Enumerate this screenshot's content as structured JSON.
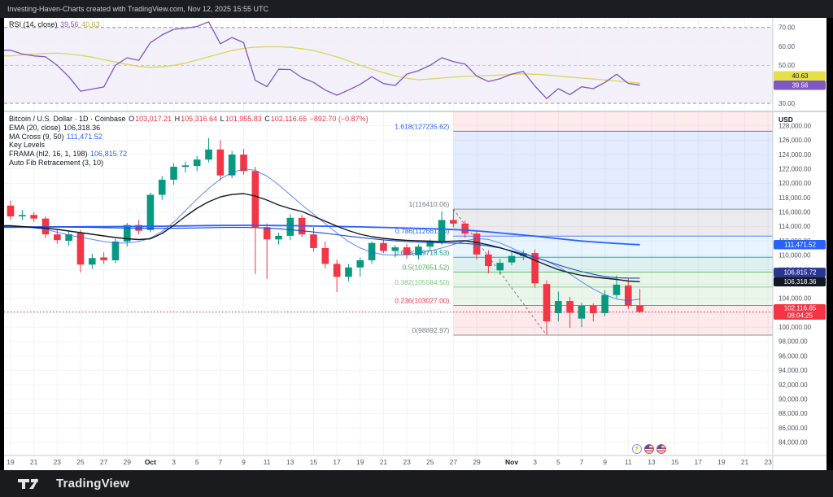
{
  "frame": {
    "top_bar_text": "Investing-Haven-Charts created with TradingView.com, Nov 12, 2025 15:55 UTC",
    "brand": "TradingView"
  },
  "colors": {
    "up": "#089981",
    "down": "#f23645",
    "ema": "#131722",
    "ma_fast": "#2962ff",
    "ma_slow": "#2962ff",
    "frama": "#1848cc",
    "rsi": "#7e57c2",
    "rsi_ma": "#ddd45a",
    "grid": "#f0f3fa",
    "axis_text": "#50535e"
  },
  "rsi_pane": {
    "legend_parts": [
      {
        "t": "RSI (14, close)  ",
        "c": "#131722"
      },
      {
        "t": "39.56 ",
        "c": "#7e57c2"
      },
      {
        "t": "40.63",
        "c": "#b5ac36"
      }
    ],
    "levels": {
      "upper": 70,
      "middle": 50,
      "lower": 30
    },
    "ticks": [
      70,
      60,
      50,
      30
    ],
    "badges": [
      {
        "name": "rsi-ma-value",
        "lines": [
          "40.63"
        ],
        "bg": "#e5e048",
        "fg": "#131722",
        "value": 39.56,
        "stack": -1
      },
      {
        "name": "rsi-value",
        "lines": [
          "39.56"
        ],
        "bg": "#7e57c2",
        "fg": "#ffffff",
        "value": 39.56,
        "stack": 0
      }
    ]
  },
  "price_pane": {
    "legend_rows": [
      [
        {
          "t": "Bitcoin / U.S. Dollar · 1D · Coinbase  ",
          "c": "#131722"
        },
        {
          "t": "O",
          "c": "#131722"
        },
        {
          "t": "103,017.21 ",
          "c": "#f23645"
        },
        {
          "t": "H",
          "c": "#131722"
        },
        {
          "t": "105,316.64 ",
          "c": "#f23645"
        },
        {
          "t": "L",
          "c": "#131722"
        },
        {
          "t": "101,955.83 ",
          "c": "#f23645"
        },
        {
          "t": "C",
          "c": "#131722"
        },
        {
          "t": "102,116.65 ",
          "c": "#f23645"
        },
        {
          "t": "−892.70 (−0.87%)",
          "c": "#f23645"
        }
      ],
      [
        {
          "t": "EMA (20, close)  ",
          "c": "#131722"
        },
        {
          "t": "106,318.36",
          "c": "#131722"
        }
      ],
      [
        {
          "t": "MA Cross (9, 50)  ",
          "c": "#131722"
        },
        {
          "t": "111,471.52",
          "c": "#2962ff"
        }
      ],
      [
        {
          "t": "Key Levels",
          "c": "#131722"
        }
      ],
      [
        {
          "t": "FRAMA (hl2, 16, 1, 198)  ",
          "c": "#131722"
        },
        {
          "t": "106,815.72",
          "c": "#2962ff"
        }
      ],
      [
        {
          "t": "Auto Fib Retracement (3, 10)",
          "c": "#131722"
        }
      ]
    ],
    "axis": {
      "currency": "USD",
      "min": 84000,
      "max": 128000,
      "step": 2000
    },
    "fib_levels": [
      {
        "level": "1.618",
        "price": 127235.62,
        "label": "1.618(127235.62)",
        "color": "#2962ff"
      },
      {
        "level": "1",
        "price": 116410.06,
        "label": "1(116410.06)",
        "color": "#787b86"
      },
      {
        "level": "0.786",
        "price": 112661.4,
        "label": "0.786(112661.40)",
        "color": "#2962ff"
      },
      {
        "level": "0.618",
        "price": 109718.53,
        "label": "0.618(109718.53)",
        "color": "#009688"
      },
      {
        "level": "0.5",
        "price": 107651.52,
        "label": "0.5(107651.52)",
        "color": "#4caf50"
      },
      {
        "level": "0.382",
        "price": 105584.5,
        "label": "0.382(105584.50)",
        "color": "#81c784"
      },
      {
        "level": "0.236",
        "price": 103027.0,
        "label": "0.236(103027.00)",
        "color": "#f23645"
      },
      {
        "level": "0",
        "price": 98892.97,
        "label": "0(98892.97)",
        "color": "#787b86"
      }
    ],
    "bands": [
      {
        "from": null,
        "to": 127235.62,
        "color": "rgba(242,54,69,0.10)"
      },
      {
        "from": 127235.62,
        "to": 116410.06,
        "color": "rgba(41,98,255,0.13)"
      },
      {
        "from": 116410.06,
        "to": 112661.4,
        "color": "rgba(120,123,134,0.15)"
      },
      {
        "from": 112661.4,
        "to": 109718.53,
        "color": "rgba(100,181,246,0.15)"
      },
      {
        "from": 109718.53,
        "to": 107651.52,
        "color": "rgba(0,150,136,0.13)"
      },
      {
        "from": 107651.52,
        "to": 105584.5,
        "color": "rgba(76,175,80,0.13)"
      },
      {
        "from": 105584.5,
        "to": 103027.0,
        "color": "rgba(129,199,132,0.16)"
      },
      {
        "from": 103027.0,
        "to": 98892.97,
        "color": "rgba(242,54,69,0.11)"
      }
    ],
    "badges": [
      {
        "name": "ma-cross-value",
        "bg": "#2962ff",
        "fg": "#ffffff",
        "lines": [
          "111,471.52"
        ],
        "price": 111471.52,
        "stack": 0
      },
      {
        "name": "frama-value",
        "bg": "#283593",
        "fg": "#ffffff",
        "lines": [
          "106,815.72"
        ],
        "price": 106318.36,
        "stack": -1
      },
      {
        "name": "ema-value",
        "bg": "#131722",
        "fg": "#ffffff",
        "lines": [
          "106,318.36"
        ],
        "price": 106318.36,
        "stack": 0
      },
      {
        "name": "last-price",
        "bg": "#f23645",
        "fg": "#ffffff",
        "lines": [
          "102,116.65",
          "08:04:25"
        ],
        "price": 102116.65,
        "stack": 0
      }
    ]
  },
  "x_axis": {
    "ticks": [
      [
        "19",
        0,
        0
      ],
      [
        "21",
        2,
        0
      ],
      [
        "23",
        4,
        0
      ],
      [
        "25",
        6,
        0
      ],
      [
        "27",
        8,
        0
      ],
      [
        "29",
        10,
        0
      ],
      [
        "Oct",
        12,
        1
      ],
      [
        "3",
        14,
        0
      ],
      [
        "5",
        16,
        0
      ],
      [
        "7",
        18,
        0
      ],
      [
        "9",
        20,
        0
      ],
      [
        "11",
        22,
        0
      ],
      [
        "13",
        24,
        0
      ],
      [
        "15",
        26,
        0
      ],
      [
        "17",
        28,
        0
      ],
      [
        "19",
        30,
        0
      ],
      [
        "21",
        32,
        0
      ],
      [
        "23",
        34,
        0
      ],
      [
        "25",
        36,
        0
      ],
      [
        "27",
        38,
        0
      ],
      [
        "29",
        40,
        0
      ],
      [
        "Nov",
        43,
        1
      ],
      [
        "3",
        45,
        0
      ],
      [
        "5",
        47,
        0
      ],
      [
        "7",
        49,
        0
      ],
      [
        "9",
        51,
        0
      ],
      [
        "11",
        53,
        0
      ],
      [
        "13",
        55,
        0
      ],
      [
        "15",
        57,
        0
      ],
      [
        "17",
        59,
        0
      ],
      [
        "19",
        61,
        0
      ],
      [
        "21",
        63,
        0
      ],
      [
        "23",
        65,
        0
      ]
    ]
  },
  "reactions": {
    "items": [
      {
        "name": "lightning",
        "glyph": "⚡"
      },
      {
        "name": "us-flag",
        "glyph": ""
      },
      {
        "name": "us-flag",
        "glyph": ""
      }
    ]
  },
  "chart_data": {
    "type": "candlestick",
    "title": "Bitcoin / U.S. Dollar",
    "interval": "1D",
    "exchange": "Coinbase",
    "last_open": 103017.21,
    "last_high": 105316.64,
    "last_low": 101955.83,
    "last_close": 102116.65,
    "change": -892.7,
    "change_pct": -0.87,
    "ylim": [
      84000,
      128000
    ],
    "fib_anchor_high_day": 38,
    "fib_anchor_low_day": 46,
    "candles": [
      [
        "Sep 19",
        116900,
        117600,
        114900,
        115400
      ],
      [
        "Sep 20",
        115400,
        116300,
        114900,
        115600
      ],
      [
        "Sep 21",
        115600,
        116000,
        114600,
        115100
      ],
      [
        "Sep 22",
        115100,
        115400,
        112400,
        112900
      ],
      [
        "Sep 23",
        112900,
        113500,
        111600,
        112100
      ],
      [
        "Sep 24",
        112000,
        113400,
        111300,
        112900
      ],
      [
        "Sep 25",
        113100,
        113500,
        107600,
        108700
      ],
      [
        "Sep 26",
        108700,
        110200,
        108100,
        109600
      ],
      [
        "Sep 27",
        109700,
        110400,
        108800,
        109300
      ],
      [
        "Sep 28",
        109300,
        112300,
        108900,
        111900
      ],
      [
        "Sep 29",
        111900,
        114500,
        111200,
        114200
      ],
      [
        "Sep 30",
        114200,
        114900,
        112900,
        113400
      ],
      [
        "Oct 1",
        113500,
        118700,
        113200,
        118400
      ],
      [
        "Oct 2",
        118400,
        121000,
        117700,
        120500
      ],
      [
        "Oct 3",
        120500,
        122800,
        119800,
        122300
      ],
      [
        "Oct 4",
        122300,
        123000,
        121500,
        122500
      ],
      [
        "Oct 5",
        122400,
        123800,
        121700,
        123300
      ],
      [
        "Oct 6",
        123300,
        126300,
        122900,
        124700
      ],
      [
        "Oct 7",
        124700,
        126000,
        120400,
        121100
      ],
      [
        "Oct 8",
        121100,
        124500,
        120700,
        124000
      ],
      [
        "Oct 9",
        124000,
        124800,
        121200,
        121700
      ],
      [
        "Oct 10",
        121700,
        122300,
        107400,
        113900
      ],
      [
        "Oct 11",
        113900,
        114400,
        106700,
        112200
      ],
      [
        "Oct 12",
        112200,
        113100,
        111500,
        112700
      ],
      [
        "Oct 13",
        112700,
        115700,
        112100,
        115200
      ],
      [
        "Oct 14",
        115200,
        115600,
        112500,
        112900
      ],
      [
        "Oct 15",
        112900,
        113900,
        110500,
        111000
      ],
      [
        "Oct 16",
        111000,
        111900,
        108200,
        108800
      ],
      [
        "Oct 17",
        108800,
        109400,
        104900,
        107000
      ],
      [
        "Oct 18",
        107000,
        108800,
        106400,
        108300
      ],
      [
        "Oct 19",
        108300,
        109700,
        107000,
        109300
      ],
      [
        "Oct 20",
        109300,
        111900,
        108800,
        111700
      ],
      [
        "Oct 21",
        111700,
        112200,
        110300,
        110600
      ],
      [
        "Oct 22",
        110600,
        111400,
        109700,
        111100
      ],
      [
        "Oct 23",
        111100,
        111600,
        109500,
        110000
      ],
      [
        "Oct 24",
        110000,
        111500,
        109400,
        111200
      ],
      [
        "Oct 25",
        111200,
        112200,
        110700,
        111900
      ],
      [
        "Oct 26",
        111900,
        116100,
        111400,
        114900
      ],
      [
        "Oct 27",
        114900,
        116410,
        113900,
        114400
      ],
      [
        "Oct 28",
        114400,
        114800,
        112400,
        113000
      ],
      [
        "Oct 29",
        113000,
        113400,
        109400,
        110100
      ],
      [
        "Oct 30",
        110100,
        110700,
        107500,
        108500
      ],
      [
        "Oct 31",
        107900,
        109500,
        107300,
        108950
      ],
      [
        "Nov 1",
        109000,
        110500,
        108600,
        109900
      ],
      [
        "Nov 2",
        109900,
        110700,
        109300,
        110300
      ],
      [
        "Nov 3",
        110300,
        110800,
        105500,
        106100
      ],
      [
        "Nov 4",
        106000,
        106500,
        98893,
        100800
      ],
      [
        "Nov 5",
        101950,
        104950,
        100800,
        103640
      ],
      [
        "Nov 6",
        103640,
        104200,
        99900,
        102000
      ],
      [
        "Nov 7",
        101190,
        103400,
        100000,
        102960
      ],
      [
        "Nov 8",
        103000,
        103300,
        100800,
        101950
      ],
      [
        "Nov 9",
        101950,
        105150,
        101500,
        104470
      ],
      [
        "Nov 10",
        104470,
        107200,
        104000,
        105900
      ],
      [
        "Nov 11",
        105790,
        106800,
        102500,
        102960
      ],
      [
        "Nov 12",
        103017.21,
        105316.64,
        101955.83,
        102116.65
      ]
    ],
    "overlays": {
      "ema20": [
        114100,
        113990,
        113875,
        113760,
        113590,
        113365,
        113140,
        112915,
        112690,
        112460,
        112290,
        112175,
        112290,
        113025,
        114155,
        115400,
        116530,
        117435,
        118110,
        118450,
        118565,
        118225,
        117660,
        116985,
        116475,
        116080,
        115400,
        114720,
        114045,
        113420,
        112915,
        112575,
        112350,
        112175,
        112065,
        112010,
        111950,
        111895,
        111950,
        112010,
        111785,
        111445,
        111050,
        110540,
        109975,
        109300,
        108620,
        108000,
        107545,
        107205,
        106980,
        106810,
        106640,
        106415,
        106318
      ],
      "ma50": [
        113900,
        113910,
        113920,
        113930,
        113940,
        113950,
        113960,
        113970,
        113980,
        113990,
        114000,
        114010,
        114020,
        114040,
        114060,
        114080,
        114100,
        114120,
        114140,
        114150,
        114160,
        114160,
        114150,
        114130,
        114110,
        114090,
        114060,
        114030,
        114000,
        113970,
        113940,
        113900,
        113860,
        113820,
        113780,
        113730,
        113680,
        113630,
        113570,
        113500,
        113380,
        113250,
        113100,
        112950,
        112800,
        112650,
        112480,
        112300,
        112130,
        111980,
        111850,
        111740,
        111640,
        111550,
        111472
      ],
      "ma9": [
        114000,
        113900,
        113800,
        113600,
        113200,
        112800,
        112500,
        112200,
        111900,
        111700,
        111700,
        111900,
        112400,
        113300,
        114600,
        116200,
        117800,
        119300,
        120600,
        121500,
        122000,
        121800,
        121000,
        119800,
        118400,
        117000,
        115700,
        114400,
        113100,
        111900,
        111000,
        110400,
        110100,
        110000,
        110100,
        110300,
        110600,
        111000,
        111500,
        112000,
        112300,
        112200,
        111700,
        111000,
        110300,
        109700,
        109200,
        108400,
        107400,
        106300,
        105300,
        104500,
        103900,
        103700,
        103900
      ],
      "frama": [
        113950,
        113950,
        113950,
        113940,
        113930,
        113910,
        113890,
        113860,
        113830,
        113800,
        113770,
        113750,
        113740,
        113740,
        113750,
        113770,
        113800,
        113830,
        113850,
        113860,
        113860,
        113840,
        113780,
        113680,
        113550,
        113400,
        113230,
        113050,
        112860,
        112660,
        112470,
        112290,
        112130,
        112000,
        111900,
        111820,
        111760,
        111720,
        111690,
        111640,
        111520,
        111300,
        111000,
        110620,
        110180,
        109700,
        109180,
        108660,
        108170,
        107730,
        107350,
        107050,
        106880,
        106820,
        106816
      ]
    },
    "rsi": {
      "values": [
        58,
        56,
        55,
        54.5,
        50,
        44,
        36.4,
        37.5,
        38.6,
        50,
        54,
        52.6,
        62,
        66,
        69,
        69.6,
        70.5,
        72.9,
        61.4,
        64.7,
        62,
        42.1,
        38.8,
        47.9,
        47.8,
        43.5,
        41,
        37,
        34.3,
        37,
        40,
        44,
        40.4,
        39.4,
        45.4,
        47.2,
        50,
        54,
        52,
        50.7,
        44.3,
        41.5,
        43,
        45.4,
        46.8,
        39,
        32.5,
        37.7,
        34.6,
        38.7,
        37.7,
        41,
        45.3,
        40.5,
        39.56
      ],
      "ma": [
        55,
        55.5,
        56,
        56.3,
        56.4,
        56,
        55.3,
        54.3,
        53,
        51.8,
        50.5,
        49.5,
        49,
        49.2,
        50,
        51.2,
        52.8,
        54.5,
        56.2,
        57.8,
        59,
        59.6,
        59.8,
        59.8,
        59.5,
        58.8,
        57.8,
        56.3,
        54.5,
        52.3,
        50,
        48,
        46.2,
        44.5,
        43.2,
        42.4,
        42.8,
        43.3,
        43.8,
        44.2,
        44.4,
        44.6,
        44.9,
        45.2,
        45.5,
        45.3,
        44.9,
        44.4,
        43.8,
        43.3,
        42.8,
        42.3,
        41.8,
        41.2,
        40.63
      ]
    }
  }
}
